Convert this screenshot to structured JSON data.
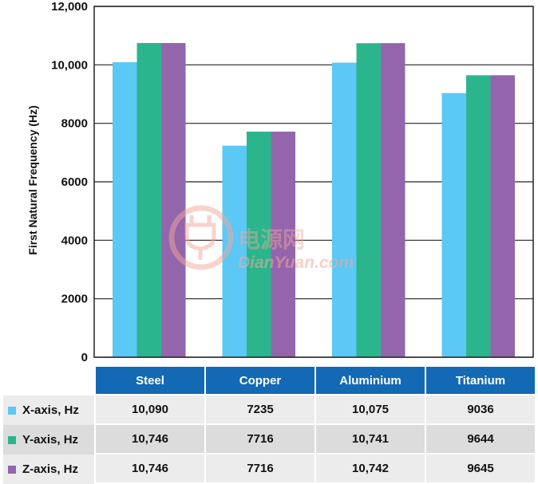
{
  "chart_data": {
    "type": "bar",
    "categories": [
      "Steel",
      "Copper",
      "Aluminium",
      "Titanium"
    ],
    "series": [
      {
        "name": "X-axis, Hz",
        "color": "#5bc8f5",
        "values": [
          10090,
          7235,
          10075,
          9036
        ],
        "labels": [
          "10,090",
          "7235",
          "10,075",
          "9036"
        ]
      },
      {
        "name": "Y-axis, Hz",
        "color": "#2bb58d",
        "values": [
          10746,
          7716,
          10741,
          9644
        ],
        "labels": [
          "10,746",
          "7716",
          "10,741",
          "9644"
        ]
      },
      {
        "name": "Z-axis, Hz",
        "color": "#9365ad",
        "values": [
          10746,
          7716,
          10742,
          9645
        ],
        "labels": [
          "10,746",
          "7716",
          "10,742",
          "9645"
        ]
      }
    ],
    "ylabel": "First Natural Frequency (Hz)",
    "ylim": [
      0,
      12000
    ],
    "yticks": [
      0,
      2000,
      4000,
      6000,
      8000,
      10000,
      12000
    ],
    "ytick_labels": [
      "0",
      "2000",
      "4000",
      "6000",
      "8000",
      "10,000",
      "12,000"
    ],
    "grid": true,
    "legend": "table-below"
  },
  "watermark": {
    "cn": "电源网",
    "en": "DianYuan.com"
  },
  "table": {
    "header_color": "#1469b4"
  }
}
